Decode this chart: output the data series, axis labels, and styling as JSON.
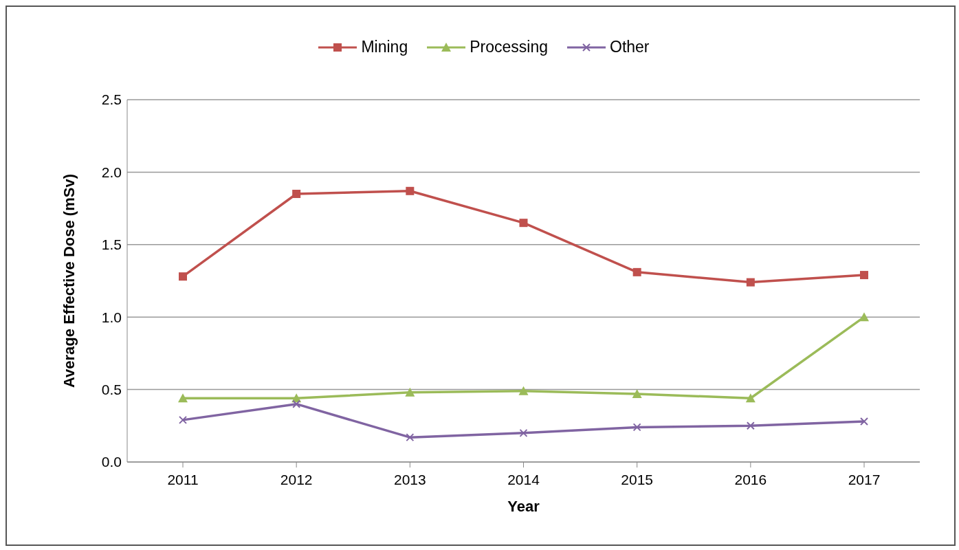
{
  "chart_data": {
    "type": "line",
    "xlabel": "Year",
    "ylabel": "Average Effective Dose (mSv)",
    "categories": [
      "2011",
      "2012",
      "2013",
      "2014",
      "2015",
      "2016",
      "2017"
    ],
    "series": [
      {
        "name": "Mining",
        "color": "#c0504d",
        "marker": "square",
        "values": [
          1.28,
          1.85,
          1.87,
          1.65,
          1.31,
          1.24,
          1.29
        ]
      },
      {
        "name": "Processing",
        "color": "#9bbb59",
        "marker": "triangle",
        "values": [
          0.44,
          0.44,
          0.48,
          0.49,
          0.47,
          0.44,
          1.0
        ]
      },
      {
        "name": "Other",
        "color": "#8064a2",
        "marker": "cross",
        "values": [
          0.29,
          0.4,
          0.17,
          0.2,
          0.24,
          0.25,
          0.28
        ]
      }
    ],
    "ylim": [
      0,
      2.5
    ],
    "yticks": [
      {
        "value": 0,
        "label": "0.0"
      },
      {
        "value": 0.5,
        "label": "0.5"
      },
      {
        "value": 1,
        "label": "1.0"
      },
      {
        "value": 1.5,
        "label": "1.5"
      },
      {
        "value": 2,
        "label": "2.0"
      },
      {
        "value": 2.5,
        "label": "2.5"
      }
    ],
    "grid": "y",
    "legend": "top",
    "line_style": "solid"
  }
}
